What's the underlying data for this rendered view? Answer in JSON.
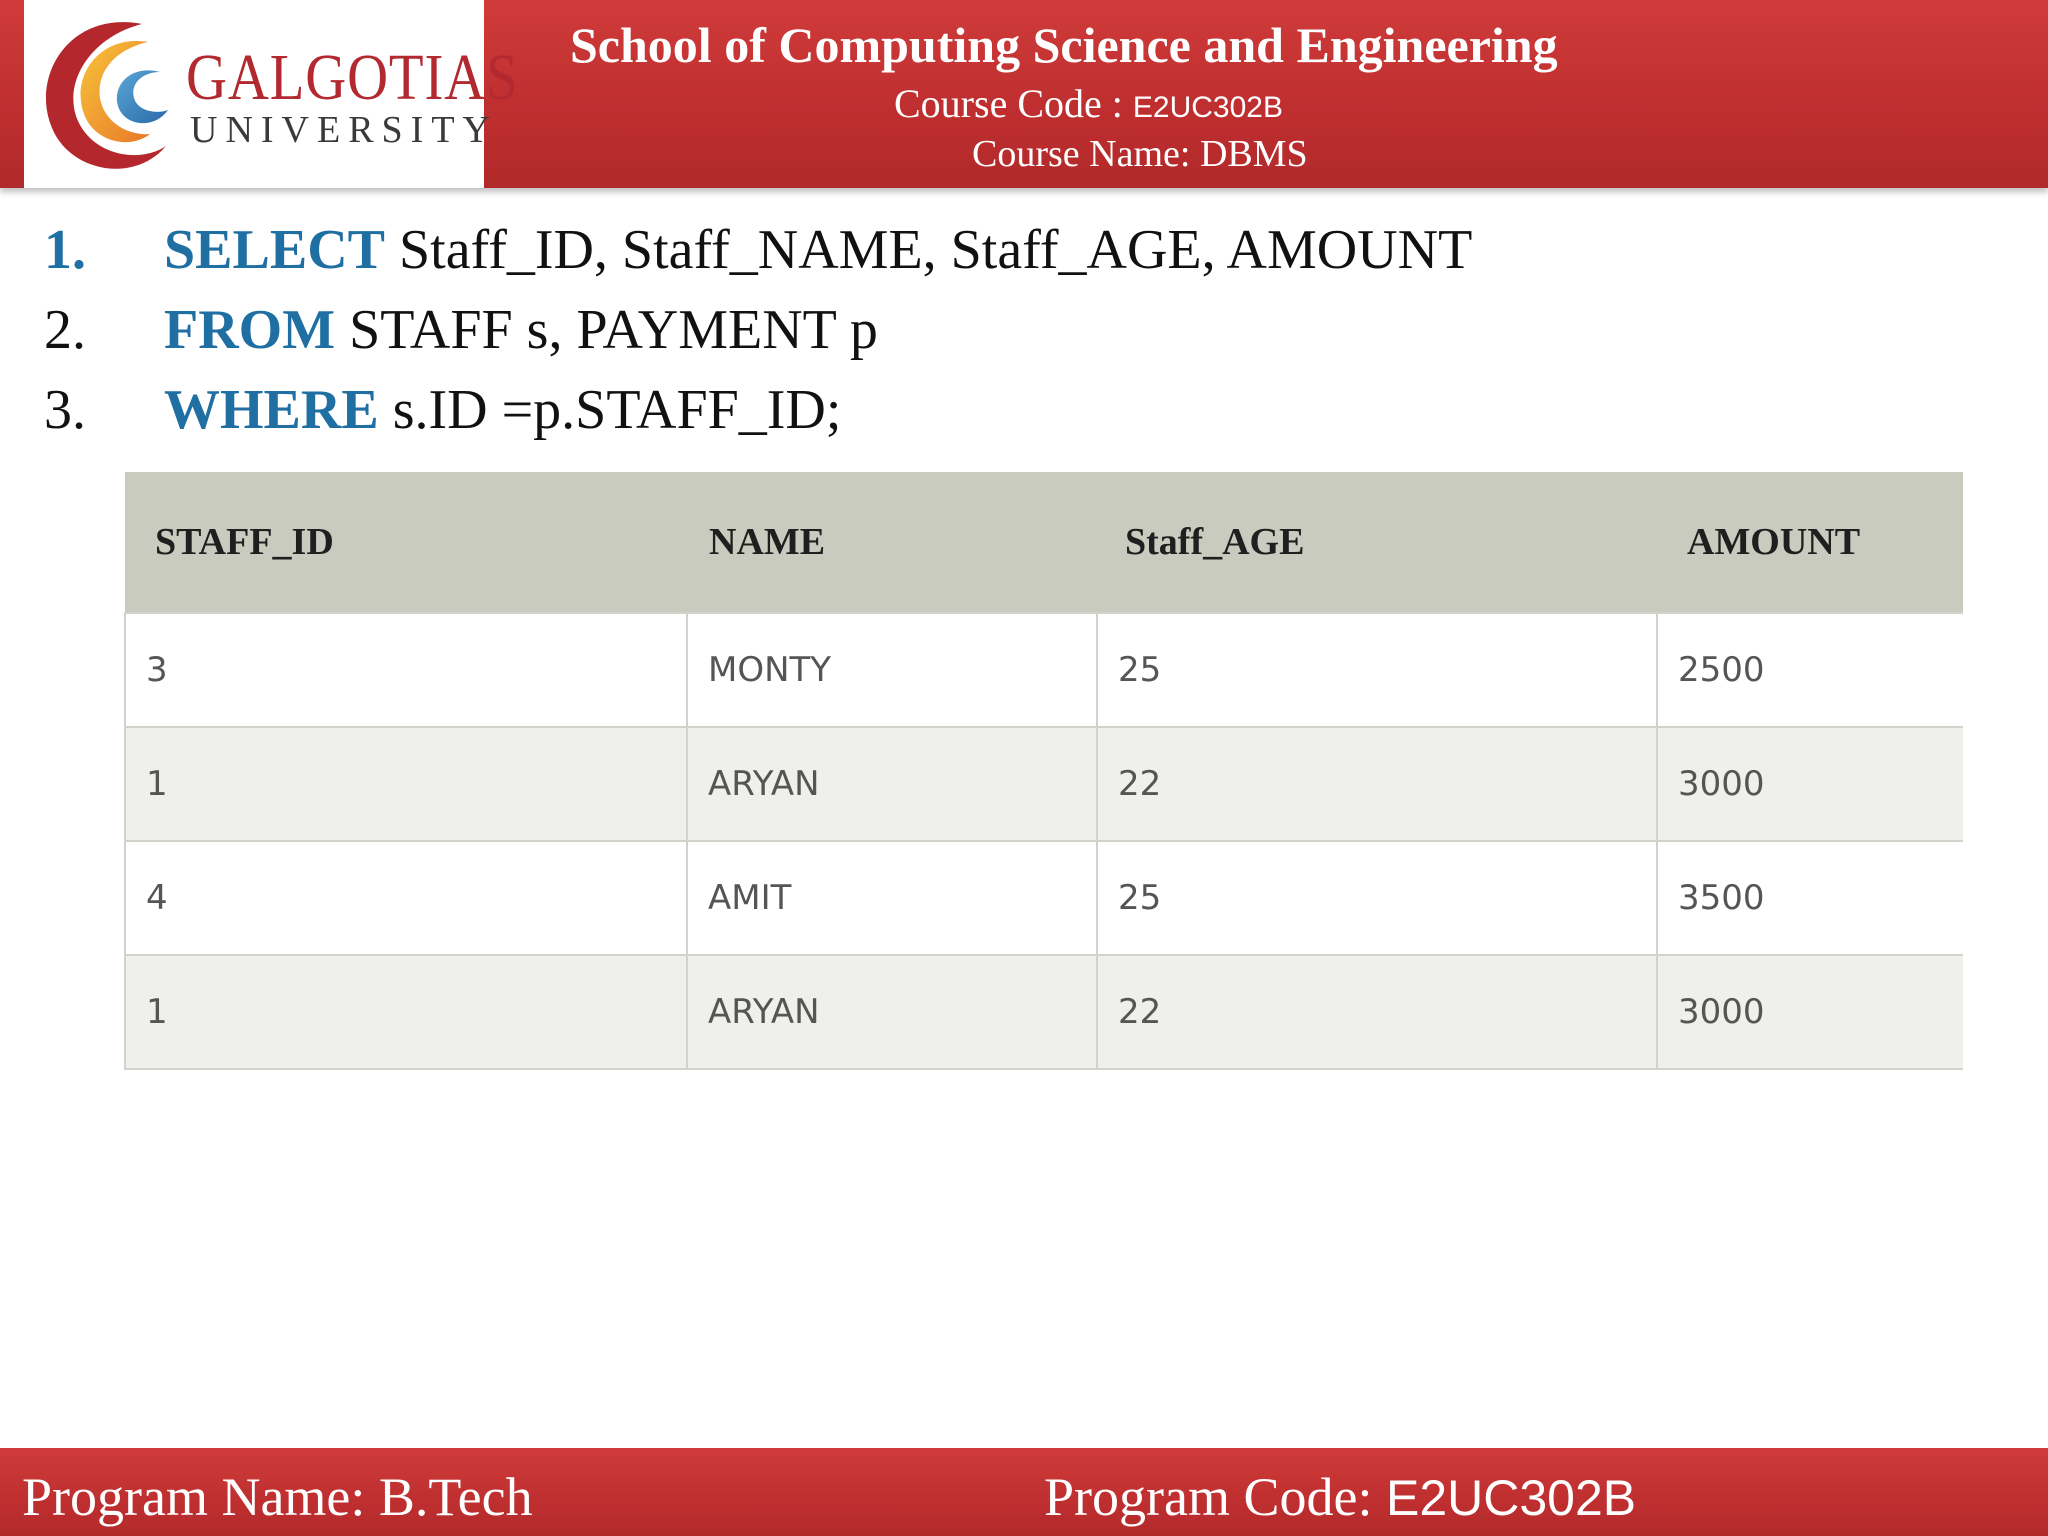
{
  "header": {
    "logo_name": "GALGOTIAS",
    "logo_sub": "UNIVERSITY",
    "school": "School of Computing Science and Engineering",
    "course_code_label": "Course Code :",
    "course_code": "E2UC302B",
    "course_name": "Course Name: DBMS"
  },
  "sql": [
    {
      "num": "1.",
      "keyword": "SELECT",
      "rest": " Staff_ID, Staff_NAME, Staff_AGE, AMOUNT"
    },
    {
      "num": "2.",
      "keyword": "FROM",
      "rest": " STAFF s, PAYMENT p"
    },
    {
      "num": "3.",
      "keyword": "WHERE",
      "rest": " s.ID =p.STAFF_ID;"
    }
  ],
  "table": {
    "headers": [
      "STAFF_ID",
      "NAME",
      "Staff_AGE",
      "AMOUNT"
    ],
    "rows": [
      [
        "3",
        "MONTY",
        "25",
        "2500"
      ],
      [
        "1",
        "ARYAN",
        "22",
        "3000"
      ],
      [
        "4",
        "AMIT",
        "25",
        "3500"
      ],
      [
        "1",
        "ARYAN",
        "22",
        "3000"
      ]
    ]
  },
  "footer": {
    "program_name": "Program Name: B.Tech",
    "program_code_label": "Program Code: ",
    "program_code": "E2UC302B"
  },
  "colors": {
    "header_red": "#c02f30",
    "keyword_blue": "#1f6fa3",
    "table_header_bg": "#c8cbbe"
  }
}
